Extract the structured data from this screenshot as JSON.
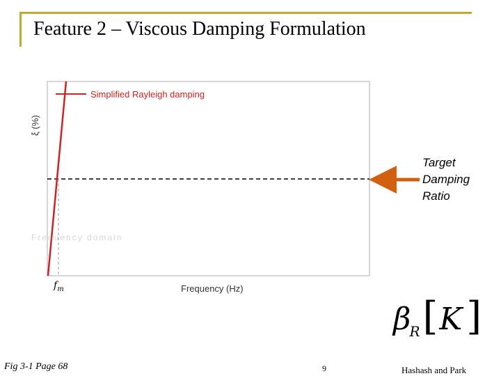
{
  "slide": {
    "title": "Feature 2 – Viscous Damping Formulation",
    "page_number": "9",
    "authors": "Hashash and Park",
    "figure_caption": "Fig 3-1 Page 68"
  },
  "figure": {
    "legend_label": "Simplified Rayleigh damping",
    "y_axis_label": "ξ (%)",
    "x_axis_label": "Frequency (Hz)",
    "fm_label": "f",
    "fm_subscript": "m",
    "faint_label": "Frequency domain"
  },
  "callout": {
    "line1": "Target",
    "line2": "Damping",
    "line3": "Ratio"
  },
  "formula": {
    "beta": "β",
    "subscript": "R",
    "left_bracket": "[",
    "matrix": "K",
    "right_bracket": "]"
  },
  "colors": {
    "accent_frame": "#c8a82a",
    "damping_line": "#cc2222",
    "arrow": "#d06010"
  }
}
